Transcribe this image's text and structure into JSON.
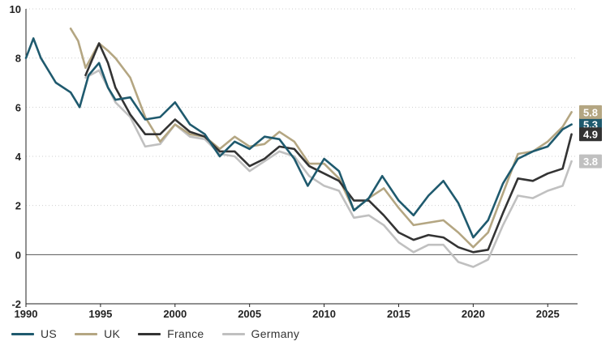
{
  "chart_data": {
    "type": "line",
    "title": "",
    "xlabel": "",
    "ylabel": "",
    "xlim": [
      1990,
      2027
    ],
    "ylim": [
      -2,
      10
    ],
    "x_ticks": [
      "1990",
      "1995",
      "2000",
      "2005",
      "2010",
      "2015",
      "2020",
      "2025"
    ],
    "y_ticks": [
      "-2",
      "0",
      "2",
      "4",
      "6",
      "8",
      "10"
    ],
    "grid": "horizontal dotted",
    "legend_position": "bottom-left",
    "series": [
      {
        "name": "US",
        "color": "#1f5a6e",
        "end_label": "5.3",
        "points": [
          [
            1990.0,
            8.0
          ],
          [
            1990.5,
            8.8
          ],
          [
            1991.0,
            8.0
          ],
          [
            1992.0,
            7.0
          ],
          [
            1993.0,
            6.6
          ],
          [
            1993.6,
            6.0
          ],
          [
            1994.2,
            7.3
          ],
          [
            1994.9,
            7.8
          ],
          [
            1995.5,
            6.8
          ],
          [
            1996.0,
            6.3
          ],
          [
            1997.0,
            6.4
          ],
          [
            1998.0,
            5.5
          ],
          [
            1999.0,
            5.6
          ],
          [
            2000.0,
            6.2
          ],
          [
            2001.0,
            5.3
          ],
          [
            2002.0,
            4.9
          ],
          [
            2003.0,
            4.0
          ],
          [
            2004.0,
            4.6
          ],
          [
            2005.0,
            4.3
          ],
          [
            2006.0,
            4.8
          ],
          [
            2007.0,
            4.7
          ],
          [
            2008.0,
            3.9
          ],
          [
            2008.9,
            2.8
          ],
          [
            2009.5,
            3.4
          ],
          [
            2010.0,
            3.9
          ],
          [
            2011.0,
            3.4
          ],
          [
            2012.0,
            1.8
          ],
          [
            2013.0,
            2.3
          ],
          [
            2013.9,
            3.2
          ],
          [
            2015.0,
            2.2
          ],
          [
            2016.0,
            1.6
          ],
          [
            2017.0,
            2.4
          ],
          [
            2018.0,
            3.0
          ],
          [
            2019.0,
            2.1
          ],
          [
            2020.0,
            0.7
          ],
          [
            2021.0,
            1.4
          ],
          [
            2022.0,
            2.9
          ],
          [
            2023.0,
            3.9
          ],
          [
            2024.0,
            4.2
          ],
          [
            2025.0,
            4.4
          ],
          [
            2026.0,
            5.1
          ],
          [
            2026.6,
            5.3
          ]
        ]
      },
      {
        "name": "UK",
        "color": "#b4a682",
        "end_label": "5.8",
        "points": [
          [
            1993.0,
            9.2
          ],
          [
            1993.5,
            8.7
          ],
          [
            1994.0,
            7.6
          ],
          [
            1994.9,
            8.6
          ],
          [
            1995.5,
            8.3
          ],
          [
            1996.0,
            8.0
          ],
          [
            1997.0,
            7.2
          ],
          [
            1998.0,
            5.6
          ],
          [
            1999.0,
            4.6
          ],
          [
            2000.0,
            5.3
          ],
          [
            2001.0,
            4.9
          ],
          [
            2002.0,
            4.8
          ],
          [
            2003.0,
            4.3
          ],
          [
            2004.0,
            4.8
          ],
          [
            2005.0,
            4.4
          ],
          [
            2006.0,
            4.5
          ],
          [
            2007.0,
            5.0
          ],
          [
            2008.0,
            4.6
          ],
          [
            2009.0,
            3.7
          ],
          [
            2010.0,
            3.7
          ],
          [
            2011.0,
            3.1
          ],
          [
            2012.0,
            1.8
          ],
          [
            2013.0,
            2.3
          ],
          [
            2014.0,
            2.7
          ],
          [
            2015.0,
            1.9
          ],
          [
            2016.0,
            1.2
          ],
          [
            2017.0,
            1.3
          ],
          [
            2018.0,
            1.4
          ],
          [
            2019.0,
            0.9
          ],
          [
            2020.0,
            0.3
          ],
          [
            2021.0,
            0.9
          ],
          [
            2022.0,
            2.5
          ],
          [
            2023.0,
            4.1
          ],
          [
            2024.0,
            4.2
          ],
          [
            2025.0,
            4.6
          ],
          [
            2026.0,
            5.2
          ],
          [
            2026.6,
            5.8
          ]
        ]
      },
      {
        "name": "France",
        "color": "#333333",
        "end_label": "4.9",
        "points": [
          [
            1994.0,
            7.3
          ],
          [
            1994.9,
            8.6
          ],
          [
            1995.5,
            7.8
          ],
          [
            1996.0,
            6.8
          ],
          [
            1997.0,
            5.7
          ],
          [
            1998.0,
            4.9
          ],
          [
            1999.0,
            4.9
          ],
          [
            2000.0,
            5.5
          ],
          [
            2001.0,
            5.0
          ],
          [
            2002.0,
            4.8
          ],
          [
            2003.0,
            4.2
          ],
          [
            2004.0,
            4.2
          ],
          [
            2005.0,
            3.6
          ],
          [
            2006.0,
            3.9
          ],
          [
            2007.0,
            4.4
          ],
          [
            2008.0,
            4.3
          ],
          [
            2009.0,
            3.6
          ],
          [
            2010.0,
            3.3
          ],
          [
            2011.0,
            3.0
          ],
          [
            2012.0,
            2.2
          ],
          [
            2013.0,
            2.2
          ],
          [
            2014.0,
            1.6
          ],
          [
            2015.0,
            0.9
          ],
          [
            2016.0,
            0.6
          ],
          [
            2017.0,
            0.8
          ],
          [
            2018.0,
            0.7
          ],
          [
            2019.0,
            0.3
          ],
          [
            2020.0,
            0.1
          ],
          [
            2021.0,
            0.2
          ],
          [
            2022.0,
            1.7
          ],
          [
            2023.0,
            3.1
          ],
          [
            2024.0,
            3.0
          ],
          [
            2025.0,
            3.3
          ],
          [
            2026.0,
            3.5
          ],
          [
            2026.6,
            4.9
          ]
        ]
      },
      {
        "name": "Germany",
        "color": "#c0c0c0",
        "end_label": "3.8",
        "points": [
          [
            1994.0,
            7.2
          ],
          [
            1994.9,
            7.5
          ],
          [
            1995.5,
            6.8
          ],
          [
            1996.0,
            6.2
          ],
          [
            1997.0,
            5.6
          ],
          [
            1998.0,
            4.4
          ],
          [
            1999.0,
            4.5
          ],
          [
            2000.0,
            5.3
          ],
          [
            2001.0,
            4.8
          ],
          [
            2002.0,
            4.7
          ],
          [
            2003.0,
            4.1
          ],
          [
            2004.0,
            4.0
          ],
          [
            2005.0,
            3.4
          ],
          [
            2006.0,
            3.8
          ],
          [
            2007.0,
            4.2
          ],
          [
            2008.0,
            4.0
          ],
          [
            2009.0,
            3.2
          ],
          [
            2010.0,
            2.8
          ],
          [
            2011.0,
            2.6
          ],
          [
            2012.0,
            1.5
          ],
          [
            2013.0,
            1.6
          ],
          [
            2014.0,
            1.2
          ],
          [
            2015.0,
            0.5
          ],
          [
            2016.0,
            0.1
          ],
          [
            2017.0,
            0.4
          ],
          [
            2018.0,
            0.4
          ],
          [
            2019.0,
            -0.3
          ],
          [
            2020.0,
            -0.5
          ],
          [
            2021.0,
            -0.2
          ],
          [
            2022.0,
            1.2
          ],
          [
            2023.0,
            2.4
          ],
          [
            2024.0,
            2.3
          ],
          [
            2025.0,
            2.6
          ],
          [
            2026.0,
            2.8
          ],
          [
            2026.6,
            3.8
          ]
        ]
      }
    ]
  },
  "legend": {
    "items": [
      {
        "label": "US",
        "color": "#1f5a6e"
      },
      {
        "label": "UK",
        "color": "#b4a682"
      },
      {
        "label": "France",
        "color": "#333333"
      },
      {
        "label": "Germany",
        "color": "#c0c0c0"
      }
    ]
  }
}
